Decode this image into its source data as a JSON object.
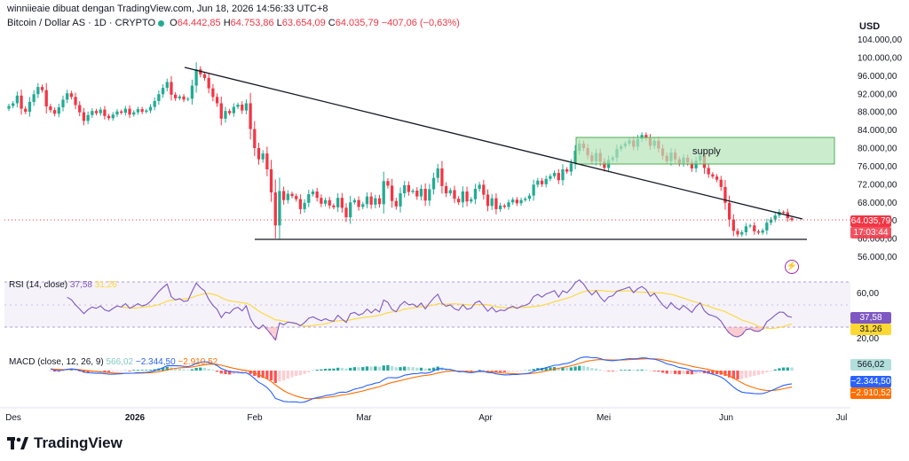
{
  "header": {
    "credit": "winniieaie dibuat dengan TradingView.com, Jun 18, 2026 14:56:33 UTC+8",
    "symbol": "Bitcoin / Dollar AS · 1D · CRYPTO",
    "o_label": "O",
    "o_value": "64.442,85",
    "h_label": "H",
    "h_value": "64.753,86",
    "l_label": "L",
    "l_value": "63.654,09",
    "c_label": "C",
    "c_value": "64.035,79",
    "change": "−407,06 (−0,63%)"
  },
  "currency": "USD",
  "branding": "TradingView",
  "price_tag": {
    "price": "64.035,79",
    "countdown": "17:03:44"
  },
  "annotation": {
    "supply": "supply"
  },
  "rsi_pane": {
    "title": "RSI (14, close)",
    "rsi": "37,58",
    "ma": "31,26",
    "axis": [
      "60,00",
      "20,00"
    ],
    "tag_rsi": "37,58",
    "tag_ma": "31,26"
  },
  "macd_pane": {
    "title": "MACD (close, 12, 26, 9)",
    "hist": "566,02",
    "macd": "−2.344,50",
    "signal": "−2.910,52",
    "tag_hist": "566,02",
    "tag_macd": "−2.344,50",
    "tag_signal": "−2.910,52"
  },
  "colors": {
    "up": "#22ab94",
    "down": "#f23645",
    "rsi": "#7e57c2",
    "rsi_ma": "#fdd835",
    "macd": "#2962ff",
    "signal": "#ff6d00",
    "supply_fill": "#b7e4b9"
  },
  "chart_data": {
    "type": "candlestick",
    "y_axis_labels": [
      "104.000,00",
      "100.000,00",
      "96.000,00",
      "92.000,00",
      "88.000,00",
      "84.000,00",
      "80.000,00",
      "76.000,00",
      "72.000,00",
      "68.000,00",
      "64.000,00",
      "60.000,00",
      "56.000,00"
    ],
    "ylim": [
      53000,
      106000
    ],
    "x_axis_labels": [
      "Des",
      "2026",
      "Feb",
      "Mar",
      "Apr",
      "Mei",
      "Jun",
      "Jul"
    ],
    "close": [
      89200,
      89800,
      91500,
      88600,
      87900,
      90100,
      91800,
      93400,
      92700,
      89100,
      88300,
      87500,
      88900,
      90600,
      92000,
      91200,
      89400,
      87800,
      85900,
      87200,
      88100,
      87600,
      88400,
      87000,
      86500,
      87300,
      88000,
      87700,
      88600,
      87300,
      87800,
      88500,
      87900,
      88200,
      89000,
      90300,
      91800,
      93200,
      94500,
      91700,
      90900,
      91300,
      90600,
      90800,
      93700,
      97300,
      96200,
      95400,
      93100,
      91200,
      89800,
      86400,
      88100,
      87600,
      89000,
      89500,
      88200,
      89800,
      84100,
      79900,
      77400,
      78700,
      75200,
      70100,
      62800,
      70400,
      68400,
      69800,
      69300,
      68600,
      66400,
      67800,
      69700,
      70300,
      68900,
      67600,
      68400,
      67200,
      66800,
      68900,
      66700,
      64600,
      67900,
      68400,
      66900,
      67500,
      69200,
      67400,
      68800,
      67500,
      72600,
      71600,
      68200,
      67000,
      69900,
      71700,
      70200,
      70500,
      69200,
      70900,
      68300,
      70800,
      73300,
      75400,
      71500,
      69900,
      70600,
      68700,
      67900,
      70300,
      68100,
      68600,
      70900,
      71800,
      69600,
      67100,
      68800,
      66400,
      67200,
      66900,
      67900,
      68500,
      67700,
      68400,
      68700,
      69400,
      71800,
      72700,
      71900,
      73100,
      73700,
      74400,
      72800,
      75200,
      74700,
      76500,
      79300,
      80900,
      79900,
      78300,
      77000,
      78800,
      76900,
      75500,
      77300,
      77800,
      79700,
      80300,
      80900,
      81600,
      80200,
      81900,
      82800,
      82100,
      80400,
      81500,
      79800,
      78200,
      77000,
      78900,
      77400,
      76500,
      77800,
      76700,
      75400,
      77100,
      78300,
      75500,
      74100,
      73600,
      72900,
      71300,
      67800,
      64100,
      61600,
      60800,
      61300,
      62600,
      62800,
      61500,
      61200,
      61700,
      63400,
      64100,
      65000,
      65800,
      65700,
      64400,
      64035
    ]
  }
}
